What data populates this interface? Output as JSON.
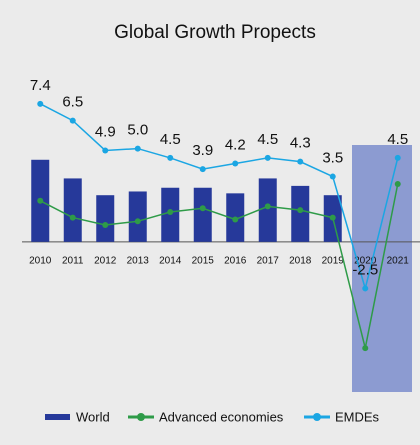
{
  "chart_data": {
    "type": "bar_line",
    "title": "Global Growth Propects",
    "categories": [
      "2010",
      "2011",
      "2012",
      "2013",
      "2014",
      "2015",
      "2016",
      "2017",
      "2018",
      "2019",
      "2020",
      "2021"
    ],
    "series": [
      {
        "name": "World",
        "type": "bar",
        "color": "#26399a",
        "values": [
          4.4,
          3.4,
          2.5,
          2.7,
          2.9,
          2.9,
          2.6,
          3.4,
          3.0,
          2.5,
          null,
          null
        ]
      },
      {
        "name": "Advanced economies",
        "type": "line",
        "color": "#2e9b48",
        "values": [
          2.2,
          1.3,
          0.9,
          1.1,
          1.6,
          1.8,
          1.2,
          1.9,
          1.7,
          1.3,
          -5.7,
          3.1
        ]
      },
      {
        "name": "EMDEs",
        "type": "line",
        "color": "#1ba6e3",
        "values": [
          7.4,
          6.5,
          4.9,
          5.0,
          4.5,
          3.9,
          4.2,
          4.5,
          4.3,
          3.5,
          -2.5,
          4.5
        ],
        "value_labels": [
          "7.4",
          "6.5",
          "4.9",
          "5.0",
          "4.5",
          "3.9",
          "4.2",
          "4.5",
          "4.3",
          "3.5",
          "-2.5",
          "4.5"
        ]
      }
    ],
    "highlight": {
      "from": 10,
      "to": 11,
      "color": "#8c9bd1"
    },
    "ylim": [
      -8,
      9
    ],
    "legend": "bottom"
  }
}
